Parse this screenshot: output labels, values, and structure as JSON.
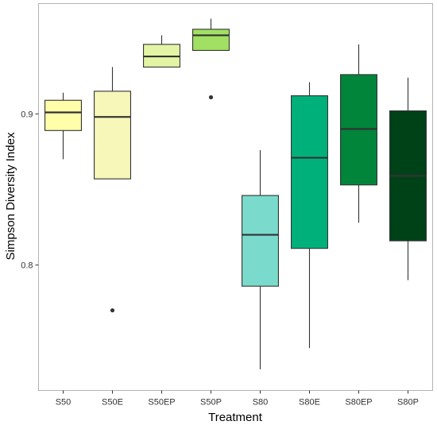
{
  "chart_data": {
    "type": "boxplot",
    "xlabel": "Treatment",
    "ylabel": "Simpson Diversity Index",
    "categories": [
      "S50",
      "S50E",
      "S50EP",
      "S50P",
      "S80",
      "S80E",
      "S80EP",
      "S80P"
    ],
    "ylim": [
      0.717,
      0.973
    ],
    "yticks": [
      0.8,
      0.9
    ],
    "ytick_labels": [
      "0.8",
      "0.9"
    ],
    "grid": false,
    "legend": "none",
    "boxes": [
      {
        "category": "S50",
        "whisker_low": 0.87,
        "q1": 0.889,
        "median": 0.901,
        "q3": 0.909,
        "whisker_high": 0.914,
        "outliers": [],
        "color": "#FFFFAA"
      },
      {
        "category": "S50E",
        "whisker_low": 0.857,
        "q1": 0.857,
        "median": 0.898,
        "q3": 0.915,
        "whisker_high": 0.931,
        "outliers": [
          0.77
        ],
        "color": "#F7F7BA"
      },
      {
        "category": "S50EP",
        "whisker_low": 0.931,
        "q1": 0.931,
        "median": 0.938,
        "q3": 0.946,
        "whisker_high": 0.952,
        "outliers": [],
        "color": "#E3F5A5"
      },
      {
        "category": "S50P",
        "whisker_low": 0.942,
        "q1": 0.942,
        "median": 0.952,
        "q3": 0.956,
        "whisker_high": 0.963,
        "outliers": [
          0.911
        ],
        "color": "#A2E063"
      },
      {
        "category": "S80",
        "whisker_low": 0.731,
        "q1": 0.786,
        "median": 0.82,
        "q3": 0.846,
        "whisker_high": 0.876,
        "outliers": [],
        "color": "#7ADBCC"
      },
      {
        "category": "S80E",
        "whisker_low": 0.745,
        "q1": 0.811,
        "median": 0.871,
        "q3": 0.912,
        "whisker_high": 0.921,
        "outliers": [],
        "color": "#00B07A"
      },
      {
        "category": "S80EP",
        "whisker_low": 0.828,
        "q1": 0.853,
        "median": 0.89,
        "q3": 0.926,
        "whisker_high": 0.946,
        "outliers": [],
        "color": "#00853B"
      },
      {
        "category": "S80P",
        "whisker_low": 0.79,
        "q1": 0.816,
        "median": 0.859,
        "q3": 0.902,
        "whisker_high": 0.924,
        "outliers": [],
        "color": "#004217"
      }
    ]
  }
}
